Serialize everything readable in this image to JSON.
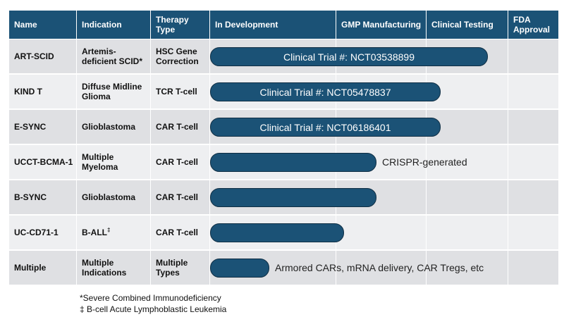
{
  "header": {
    "name": "Name",
    "indication": "Indication",
    "therapy_type": "Therapy Type",
    "in_development": "In Development",
    "gmp": "GMP Manufacturing",
    "clinical_testing": "Clinical Testing",
    "fda": "FDA Approval"
  },
  "rows": [
    {
      "name": "ART-SCID",
      "indication": "Artemis-deficient SCID",
      "indication_mark": "*",
      "therapy": "HSC Gene Correction",
      "bar_text": "Clinical Trial #: NCT03538899",
      "note": "",
      "progress_stage": 3.0
    },
    {
      "name": "KIND T",
      "indication": "Diffuse Midline Glioma",
      "indication_mark": "",
      "therapy": "TCR T-cell",
      "bar_text": "Clinical Trial #: NCT05478837",
      "note": "",
      "progress_stage": 2.55
    },
    {
      "name": "E-SYNC",
      "indication": "Glioblastoma",
      "indication_mark": "",
      "therapy": "CAR T-cell",
      "bar_text": "Clinical Trial #: NCT06186401",
      "note": "",
      "progress_stage": 2.55
    },
    {
      "name": "UCCT-BCMA-1",
      "indication": "Multiple Myeloma",
      "indication_mark": "",
      "therapy": "CAR T-cell",
      "bar_text": "",
      "note": "CRISPR-generated",
      "progress_stage": 1.7
    },
    {
      "name": "B-SYNC",
      "indication": "Glioblastoma",
      "indication_mark": "",
      "therapy": "CAR T-cell",
      "bar_text": "",
      "note": "",
      "progress_stage": 1.7
    },
    {
      "name": "UC-CD71-1",
      "indication": "B-ALL",
      "indication_mark": "‡",
      "therapy": "CAR T-cell",
      "bar_text": "",
      "note": "",
      "progress_stage": 1.5
    },
    {
      "name": "Multiple",
      "indication": "Multiple Indications",
      "indication_mark": "",
      "therapy": "Multiple Types",
      "bar_text": "",
      "note": "Armored CARs, mRNA delivery, CAR Tregs, etc",
      "progress_stage": 0.5
    }
  ],
  "footnotes": {
    "scid": "*Severe Combined Immunodeficiency",
    "ball": "‡ B-cell Acute Lymphoblastic Leukemia"
  },
  "colors": {
    "header_bg": "#1b5276",
    "bar_fill": "#1b5276",
    "row_dark": "#dfe0e3",
    "row_light": "#eeeff1"
  }
}
